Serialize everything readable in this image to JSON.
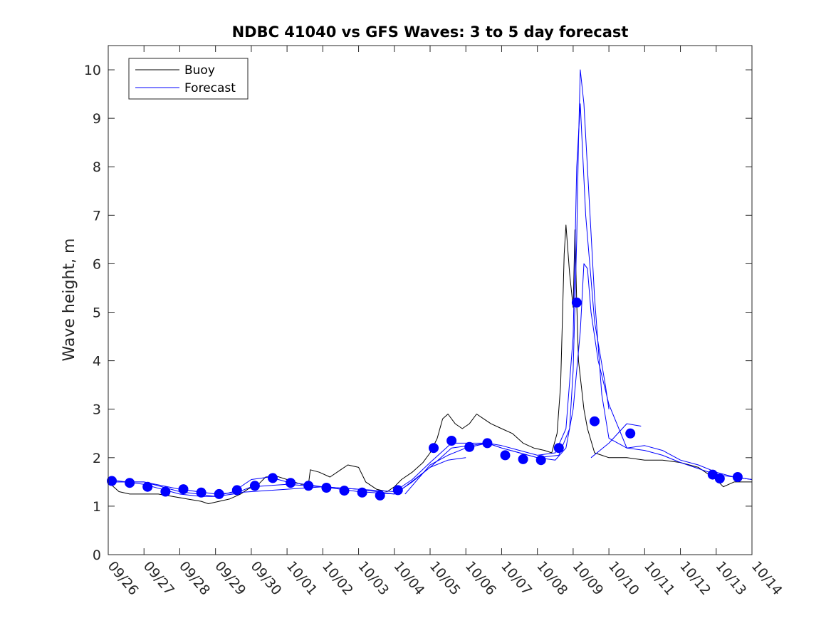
{
  "chart_data": {
    "type": "line",
    "title": "NDBC 41040 vs GFS Waves: 3 to 5 day forecast",
    "xlabel": "",
    "ylabel": "Wave height, m",
    "xlim": [
      0,
      18
    ],
    "ylim": [
      0,
      10.5
    ],
    "x_units": "days since 09/26 00:00",
    "yticks": [
      0,
      1,
      2,
      3,
      4,
      5,
      6,
      7,
      8,
      9,
      10
    ],
    "xtick_labels": [
      "09/26",
      "09/27",
      "09/28",
      "09/29",
      "09/30",
      "10/01",
      "10/02",
      "10/03",
      "10/04",
      "10/05",
      "10/06",
      "10/07",
      "10/08",
      "10/09",
      "10/10",
      "10/11",
      "10/12",
      "10/13",
      "10/14"
    ],
    "grid": false,
    "legend": {
      "position": "top-left",
      "entries": [
        "Buoy",
        "Forecast"
      ]
    },
    "colors": {
      "buoy": "#000000",
      "forecast": "#0000ff",
      "axis": "#262626"
    },
    "series": [
      {
        "name": "Buoy",
        "style": "line",
        "points": [
          [
            0,
            1.5
          ],
          [
            0.15,
            1.4
          ],
          [
            0.3,
            1.3
          ],
          [
            0.6,
            1.25
          ],
          [
            1.0,
            1.25
          ],
          [
            1.4,
            1.25
          ],
          [
            1.8,
            1.2
          ],
          [
            2.2,
            1.15
          ],
          [
            2.6,
            1.1
          ],
          [
            2.8,
            1.05
          ],
          [
            3.1,
            1.1
          ],
          [
            3.4,
            1.15
          ],
          [
            3.7,
            1.25
          ],
          [
            3.9,
            1.35
          ],
          [
            4.2,
            1.45
          ],
          [
            4.4,
            1.6
          ],
          [
            4.7,
            1.62
          ],
          [
            5.0,
            1.55
          ],
          [
            5.4,
            1.45
          ],
          [
            5.6,
            1.45
          ],
          [
            5.65,
            1.75
          ],
          [
            5.9,
            1.7
          ],
          [
            6.2,
            1.6
          ],
          [
            6.5,
            1.75
          ],
          [
            6.7,
            1.85
          ],
          [
            7.0,
            1.8
          ],
          [
            7.2,
            1.5
          ],
          [
            7.5,
            1.35
          ],
          [
            7.8,
            1.3
          ],
          [
            8.0,
            1.4
          ],
          [
            8.2,
            1.55
          ],
          [
            8.5,
            1.7
          ],
          [
            8.8,
            1.9
          ],
          [
            9.0,
            2.1
          ],
          [
            9.2,
            2.4
          ],
          [
            9.35,
            2.8
          ],
          [
            9.5,
            2.9
          ],
          [
            9.7,
            2.7
          ],
          [
            9.9,
            2.6
          ],
          [
            10.1,
            2.7
          ],
          [
            10.3,
            2.9
          ],
          [
            10.5,
            2.8
          ],
          [
            10.7,
            2.7
          ],
          [
            11.0,
            2.6
          ],
          [
            11.3,
            2.5
          ],
          [
            11.6,
            2.3
          ],
          [
            11.9,
            2.2
          ],
          [
            12.2,
            2.15
          ],
          [
            12.4,
            2.1
          ],
          [
            12.55,
            2.5
          ],
          [
            12.65,
            3.5
          ],
          [
            12.75,
            6.2
          ],
          [
            12.8,
            6.8
          ],
          [
            12.9,
            5.8
          ],
          [
            13.0,
            5.1
          ],
          [
            13.05,
            6.7
          ],
          [
            13.1,
            5.2
          ],
          [
            13.15,
            4.0
          ],
          [
            13.3,
            3.0
          ],
          [
            13.4,
            2.6
          ],
          [
            13.6,
            2.1
          ],
          [
            13.8,
            2.05
          ],
          [
            14.0,
            2.0
          ],
          [
            14.5,
            2.0
          ],
          [
            15.0,
            1.95
          ],
          [
            15.5,
            1.95
          ],
          [
            16.0,
            1.9
          ],
          [
            16.5,
            1.8
          ],
          [
            17.0,
            1.55
          ],
          [
            17.2,
            1.4
          ],
          [
            17.5,
            1.5
          ],
          [
            18.0,
            1.5
          ]
        ]
      },
      {
        "name": "Forecast run 1",
        "style": "line",
        "points": [
          [
            0,
            1.5
          ],
          [
            1.0,
            1.5
          ],
          [
            2.0,
            1.35
          ],
          [
            3.0,
            1.25
          ],
          [
            4.0,
            1.3
          ],
          [
            5.0,
            1.35
          ],
          [
            6.0,
            1.4
          ],
          [
            7.0,
            1.35
          ],
          [
            7.5,
            1.3
          ],
          [
            8.0,
            1.25
          ],
          [
            8.3,
            1.4
          ],
          [
            9.0,
            1.8
          ],
          [
            9.5,
            1.95
          ],
          [
            10.0,
            2.0
          ]
        ]
      },
      {
        "name": "Forecast run 2",
        "style": "line",
        "points": [
          [
            0,
            1.55
          ],
          [
            1.0,
            1.45
          ],
          [
            2.0,
            1.25
          ],
          [
            2.6,
            1.2
          ],
          [
            3.0,
            1.2
          ],
          [
            3.5,
            1.3
          ],
          [
            4.0,
            1.55
          ],
          [
            4.5,
            1.6
          ],
          [
            5.0,
            1.5
          ],
          [
            6.0,
            1.4
          ],
          [
            7.0,
            1.35
          ],
          [
            8.0,
            1.3
          ],
          [
            8.5,
            1.55
          ],
          [
            9.0,
            1.9
          ],
          [
            9.6,
            2.3
          ],
          [
            10.6,
            2.3
          ],
          [
            11.0,
            2.25
          ],
          [
            11.5,
            2.15
          ],
          [
            12.0,
            2.05
          ],
          [
            12.5,
            2.1
          ],
          [
            12.8,
            2.6
          ],
          [
            13.0,
            4.5
          ],
          [
            13.1,
            8.0
          ],
          [
            13.2,
            9.3
          ],
          [
            13.35,
            7.0
          ],
          [
            13.6,
            4.8
          ],
          [
            13.9,
            3.5
          ],
          [
            14.0,
            3.0
          ]
        ]
      },
      {
        "name": "Forecast run 3",
        "style": "line",
        "points": [
          [
            0,
            1.5
          ],
          [
            1.0,
            1.5
          ],
          [
            2.0,
            1.3
          ],
          [
            3.0,
            1.2
          ],
          [
            3.5,
            1.25
          ],
          [
            4.0,
            1.4
          ],
          [
            5.0,
            1.45
          ],
          [
            6.0,
            1.4
          ],
          [
            7.0,
            1.3
          ],
          [
            8.0,
            1.25
          ],
          [
            8.5,
            1.5
          ],
          [
            9.0,
            1.8
          ],
          [
            9.6,
            2.2
          ],
          [
            10.6,
            2.3
          ],
          [
            11.0,
            2.2
          ],
          [
            11.5,
            2.1
          ],
          [
            12.0,
            2.0
          ],
          [
            12.6,
            2.05
          ],
          [
            12.9,
            2.6
          ],
          [
            13.0,
            3.8
          ],
          [
            13.1,
            6.5
          ],
          [
            13.15,
            8.5
          ],
          [
            13.2,
            10.0
          ],
          [
            13.3,
            9.3
          ],
          [
            13.45,
            7.3
          ],
          [
            13.6,
            5.3
          ],
          [
            13.8,
            3.3
          ],
          [
            14.0,
            2.4
          ],
          [
            14.5,
            2.2
          ],
          [
            15.0,
            2.15
          ],
          [
            15.5,
            2.05
          ],
          [
            16.0,
            1.9
          ],
          [
            17.0,
            1.65
          ],
          [
            17.5,
            1.6
          ],
          [
            18.0,
            1.55
          ]
        ]
      },
      {
        "name": "Forecast run 4",
        "style": "line",
        "points": [
          [
            8.3,
            1.25
          ],
          [
            9.0,
            1.85
          ],
          [
            9.5,
            2.05
          ],
          [
            10.0,
            2.2
          ],
          [
            10.6,
            2.3
          ],
          [
            11.0,
            2.2
          ],
          [
            11.5,
            2.1
          ],
          [
            12.0,
            2.0
          ],
          [
            12.5,
            1.95
          ],
          [
            12.8,
            2.2
          ],
          [
            13.0,
            3.0
          ],
          [
            13.2,
            4.6
          ],
          [
            13.3,
            6.0
          ],
          [
            13.4,
            5.9
          ],
          [
            13.5,
            5.0
          ],
          [
            13.7,
            4.0
          ],
          [
            14.0,
            3.1
          ],
          [
            14.5,
            2.2
          ],
          [
            15.0,
            2.25
          ],
          [
            15.5,
            2.15
          ],
          [
            16.0,
            1.95
          ],
          [
            16.5,
            1.85
          ],
          [
            17.0,
            1.7
          ],
          [
            17.5,
            1.6
          ],
          [
            18.0,
            1.55
          ]
        ]
      },
      {
        "name": "Forecast run 5",
        "style": "line",
        "points": [
          [
            13.5,
            2.0
          ],
          [
            14.0,
            2.3
          ],
          [
            14.5,
            2.7
          ],
          [
            14.9,
            2.65
          ]
        ]
      },
      {
        "name": "Forecast analysis points",
        "style": "markers",
        "points": [
          [
            0.1,
            1.52
          ],
          [
            0.6,
            1.48
          ],
          [
            1.1,
            1.4
          ],
          [
            1.6,
            1.3
          ],
          [
            2.1,
            1.35
          ],
          [
            2.6,
            1.28
          ],
          [
            3.1,
            1.25
          ],
          [
            3.6,
            1.33
          ],
          [
            4.1,
            1.42
          ],
          [
            4.6,
            1.58
          ],
          [
            5.1,
            1.48
          ],
          [
            5.6,
            1.42
          ],
          [
            6.1,
            1.38
          ],
          [
            6.6,
            1.32
          ],
          [
            7.1,
            1.28
          ],
          [
            7.6,
            1.22
          ],
          [
            8.1,
            1.33
          ],
          [
            9.1,
            2.2
          ],
          [
            9.6,
            2.35
          ],
          [
            10.1,
            2.22
          ],
          [
            10.6,
            2.3
          ],
          [
            11.1,
            2.05
          ],
          [
            11.6,
            1.97
          ],
          [
            12.1,
            1.95
          ],
          [
            12.6,
            2.2
          ],
          [
            13.1,
            5.2
          ],
          [
            13.6,
            2.75
          ],
          [
            14.6,
            2.5
          ],
          [
            16.9,
            1.65
          ],
          [
            17.1,
            1.57
          ],
          [
            17.6,
            1.6
          ]
        ]
      }
    ]
  }
}
